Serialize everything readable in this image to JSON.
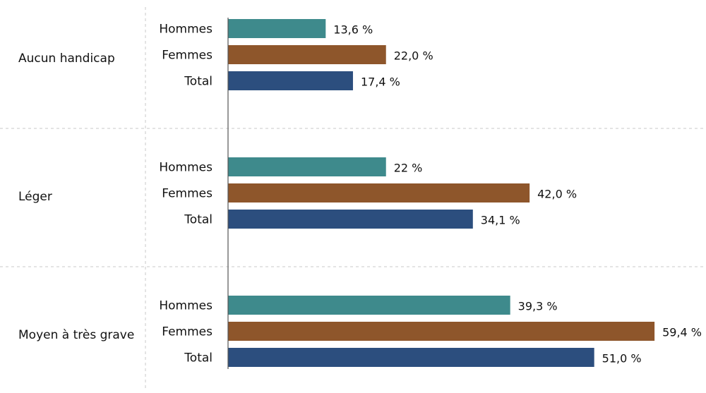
{
  "chart_data": {
    "type": "bar",
    "orientation": "horizontal",
    "title": "",
    "xlabel": "",
    "ylabel": "",
    "xlim": [
      0,
      60
    ],
    "grid": false,
    "legend": "none",
    "series_colors": {
      "Hommes": "#3e8a8c",
      "Femmes": "#8e562b",
      "Total": "#2c4e7e"
    },
    "groups": [
      {
        "label": "Aucun handicap",
        "bars": [
          {
            "category": "Hommes",
            "value": 13.6,
            "label": "13,6 %"
          },
          {
            "category": "Femmes",
            "value": 22.0,
            "label": "22,0 %"
          },
          {
            "category": "Total",
            "value": 17.4,
            "label": "17,4 %"
          }
        ]
      },
      {
        "label": "Léger",
        "bars": [
          {
            "category": "Hommes",
            "value": 22,
            "label": "22 %"
          },
          {
            "category": "Femmes",
            "value": 42.0,
            "label": "42,0 %"
          },
          {
            "category": "Total",
            "value": 34.1,
            "label": "34,1 %"
          }
        ]
      },
      {
        "label": "Moyen à très grave",
        "bars": [
          {
            "category": "Hommes",
            "value": 39.3,
            "label": "39,3 %"
          },
          {
            "category": "Femmes",
            "value": 59.4,
            "label": "59,4 %"
          },
          {
            "category": "Total",
            "value": 51.0,
            "label": "51,0 %"
          }
        ]
      }
    ]
  }
}
